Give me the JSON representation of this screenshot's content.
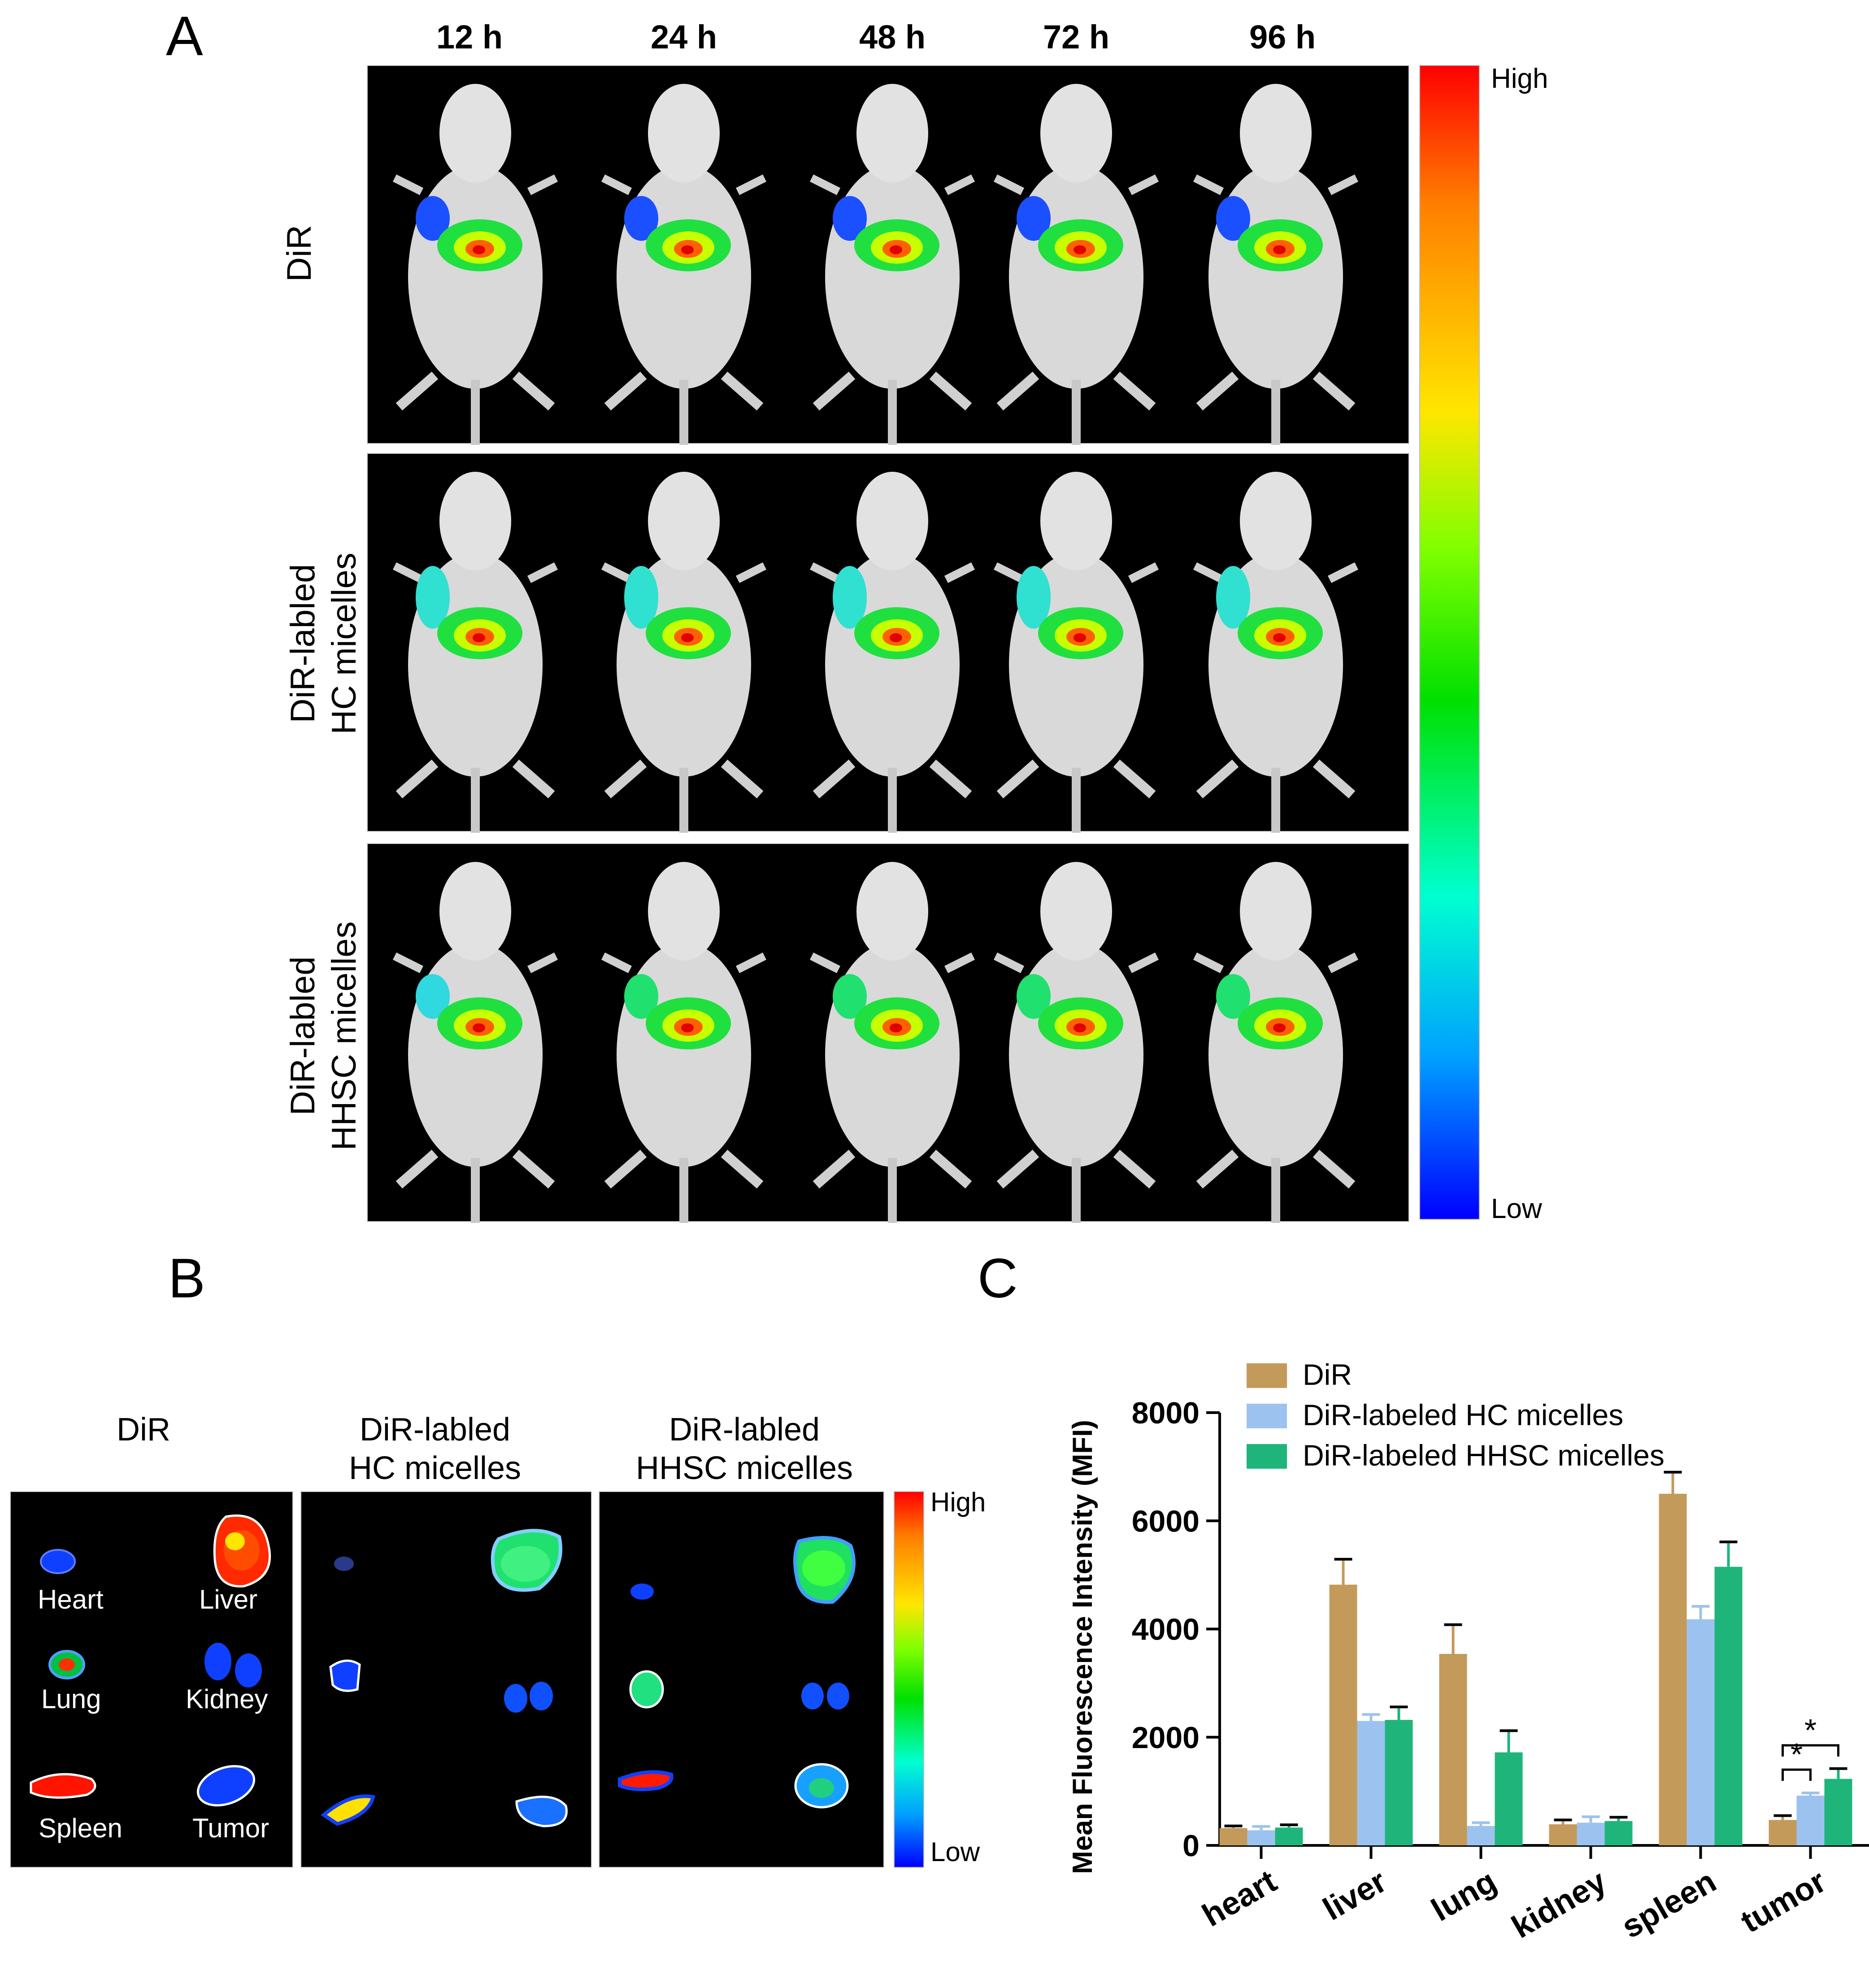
{
  "panel_a": {
    "letter": "A",
    "timepoints": [
      "12 h",
      "24 h",
      "48 h",
      "72 h",
      "96 h"
    ],
    "rows": [
      {
        "lines": [
          "DiR"
        ]
      },
      {
        "lines": [
          "DiR-labled",
          "HC micelles"
        ]
      },
      {
        "lines": [
          "DiR-labled",
          "HHSC micelles"
        ]
      }
    ],
    "colorbar": {
      "high": "High",
      "low": "Low"
    }
  },
  "panel_b": {
    "letter": "B",
    "groups": [
      {
        "lines": [
          "DiR"
        ]
      },
      {
        "lines": [
          "DiR-labled",
          "HC micelles"
        ]
      },
      {
        "lines": [
          "DiR-labled",
          "HHSC micelles"
        ]
      }
    ],
    "organs": [
      "Heart",
      "Liver",
      "Lung",
      "Kidney",
      "Spleen",
      "Tumor"
    ],
    "colorbar": {
      "high": "High",
      "low": "Low"
    }
  },
  "panel_c": {
    "letter": "C"
  },
  "chart_data": {
    "type": "bar",
    "title": "",
    "xlabel": "",
    "ylabel": "Mean Fluorescence Intensity (MFI)",
    "ylim": [
      0,
      8000
    ],
    "yticks": [
      "0",
      "2000",
      "4000",
      "6000",
      "8000"
    ],
    "categories": [
      "heart",
      "liver",
      "lung",
      "kidney",
      "spleen",
      "tumor"
    ],
    "series": [
      {
        "name": "DiR",
        "color": "#c49a5a",
        "values": [
          320,
          4820,
          3540,
          390,
          6500,
          470
        ],
        "errors": [
          40,
          470,
          540,
          80,
          400,
          80
        ]
      },
      {
        "name": "DiR-labeled HC micelles",
        "color": "#9cc3f0",
        "values": [
          280,
          2300,
          360,
          420,
          4180,
          920
        ],
        "errors": [
          70,
          120,
          60,
          110,
          240,
          50
        ]
      },
      {
        "name": "DiR-labeled HHSC micelles",
        "color": "#1fb57a",
        "values": [
          330,
          2320,
          1720,
          450,
          5150,
          1230
        ],
        "errors": [
          50,
          240,
          400,
          70,
          460,
          190
        ]
      }
    ],
    "significance": [
      "*",
      "*"
    ],
    "legend_position": "top-left"
  }
}
